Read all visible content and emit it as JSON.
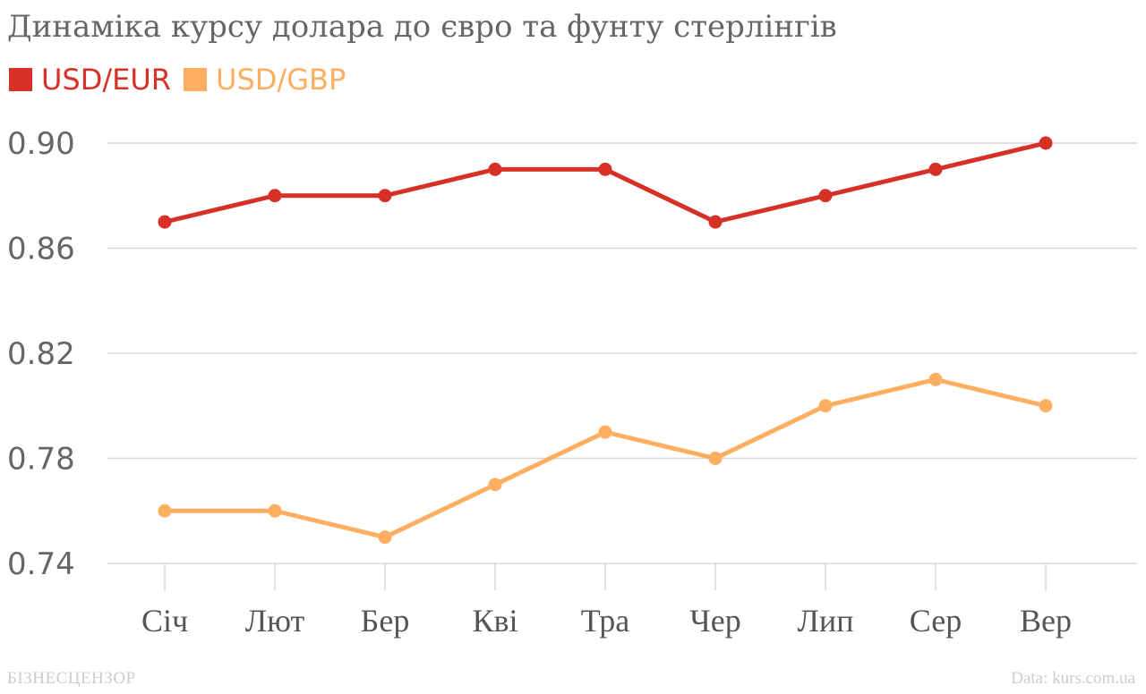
{
  "chart_data": {
    "type": "line",
    "title": "Динаміка курсу долара до євро та фунту стерлінгів",
    "categories": [
      "Січ",
      "Лют",
      "Бер",
      "Кві",
      "Тра",
      "Чер",
      "Лип",
      "Сер",
      "Вер"
    ],
    "series": [
      {
        "name": "USD/EUR",
        "color": "#d73027",
        "values": [
          0.87,
          0.88,
          0.88,
          0.89,
          0.89,
          0.87,
          0.88,
          0.89,
          0.9
        ]
      },
      {
        "name": "USD/GBP",
        "color": "#fdae61",
        "values": [
          0.76,
          0.76,
          0.75,
          0.77,
          0.79,
          0.78,
          0.8,
          0.81,
          0.8
        ]
      }
    ],
    "yticks": [
      "0.90",
      "0.86",
      "0.82",
      "0.78",
      "0.74"
    ],
    "ylim": [
      0.74,
      0.9
    ],
    "xlabel": "",
    "ylabel": "",
    "grid": true,
    "legend": "top-left"
  },
  "branding": {
    "publisher": "БІЗНЕСЦЕНЗОР"
  },
  "source_note": "Data: kurs.com.ua"
}
